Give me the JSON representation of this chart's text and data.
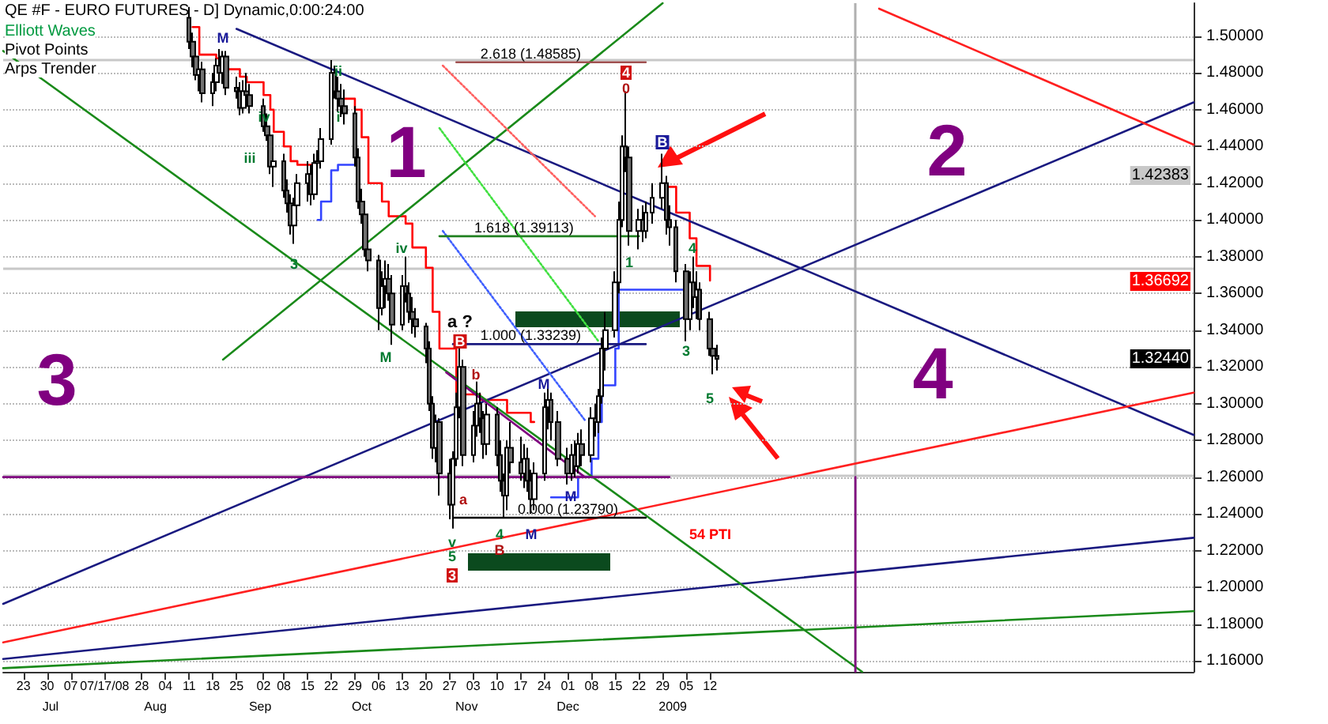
{
  "chart_data": {
    "type": "candlestick",
    "title": "QE #F - EURO FUTURES - D] Dynamic,0:00:24:00",
    "x": [
      "2008-08-11",
      "2008-08-12",
      "2008-08-13",
      "2008-08-14",
      "2008-08-15",
      "2008-08-18",
      "2008-08-19",
      "2008-08-20",
      "2008-08-21",
      "2008-08-22",
      "2008-08-25",
      "2008-08-26",
      "2008-08-27",
      "2008-08-28",
      "2008-08-29",
      "2008-09-02",
      "2008-09-03",
      "2008-09-04",
      "2008-09-05",
      "2008-09-08",
      "2008-09-09",
      "2008-09-10",
      "2008-09-11",
      "2008-09-12",
      "2008-09-15",
      "2008-09-16",
      "2008-09-17",
      "2008-09-18",
      "2008-09-19",
      "2008-09-22",
      "2008-09-23",
      "2008-09-24",
      "2008-09-25",
      "2008-09-26",
      "2008-09-29",
      "2008-09-30",
      "2008-10-01",
      "2008-10-02",
      "2008-10-03",
      "2008-10-06",
      "2008-10-07",
      "2008-10-08",
      "2008-10-09",
      "2008-10-10",
      "2008-10-13",
      "2008-10-14",
      "2008-10-15",
      "2008-10-16",
      "2008-10-17",
      "2008-10-20",
      "2008-10-21",
      "2008-10-22",
      "2008-10-23",
      "2008-10-24",
      "2008-10-27",
      "2008-10-28",
      "2008-10-29",
      "2008-10-30",
      "2008-10-31",
      "2008-11-03",
      "2008-11-04",
      "2008-11-05",
      "2008-11-06",
      "2008-11-07",
      "2008-11-10",
      "2008-11-11",
      "2008-11-12",
      "2008-11-13",
      "2008-11-14",
      "2008-11-17",
      "2008-11-18",
      "2008-11-19",
      "2008-11-20",
      "2008-11-21",
      "2008-11-24",
      "2008-11-25",
      "2008-11-26",
      "2008-11-28",
      "2008-12-01",
      "2008-12-02",
      "2008-12-03",
      "2008-12-04",
      "2008-12-05",
      "2008-12-08",
      "2008-12-09",
      "2008-12-10",
      "2008-12-11",
      "2008-12-12",
      "2008-12-15",
      "2008-12-16",
      "2008-12-17",
      "2008-12-18",
      "2008-12-19",
      "2008-12-22",
      "2008-12-23",
      "2008-12-24",
      "2008-12-26",
      "2008-12-29",
      "2008-12-30",
      "2008-12-31",
      "2009-01-02",
      "2009-01-05",
      "2009-01-06",
      "2009-01-07",
      "2009-01-08",
      "2009-01-09",
      "2009-01-12",
      "2009-01-13",
      "2009-01-14"
    ],
    "ohlc": [
      [
        1.51,
        1.516,
        1.493,
        1.497
      ],
      [
        1.497,
        1.502,
        1.483,
        1.489
      ],
      [
        1.489,
        1.496,
        1.476,
        1.479
      ],
      [
        1.479,
        1.487,
        1.47,
        1.482
      ],
      [
        1.482,
        1.486,
        1.464,
        1.469
      ],
      [
        1.469,
        1.48,
        1.462,
        1.475
      ],
      [
        1.475,
        1.488,
        1.47,
        1.484
      ],
      [
        1.484,
        1.493,
        1.476,
        1.48
      ],
      [
        1.48,
        1.492,
        1.474,
        1.489
      ],
      [
        1.489,
        1.492,
        1.468,
        1.472
      ],
      [
        1.472,
        1.478,
        1.466,
        1.47
      ],
      [
        1.47,
        1.475,
        1.457,
        1.461
      ],
      [
        1.461,
        1.476,
        1.458,
        1.47
      ],
      [
        1.47,
        1.48,
        1.463,
        1.468
      ],
      [
        1.468,
        1.474,
        1.458,
        1.462
      ],
      [
        1.462,
        1.466,
        1.448,
        1.451
      ],
      [
        1.451,
        1.458,
        1.443,
        1.446
      ],
      [
        1.446,
        1.448,
        1.425,
        1.429
      ],
      [
        1.429,
        1.437,
        1.418,
        1.432
      ],
      [
        1.432,
        1.436,
        1.412,
        1.416
      ],
      [
        1.416,
        1.422,
        1.404,
        1.409
      ],
      [
        1.409,
        1.414,
        1.392,
        1.397
      ],
      [
        1.397,
        1.412,
        1.387,
        1.408
      ],
      [
        1.408,
        1.425,
        1.402,
        1.42
      ],
      [
        1.42,
        1.432,
        1.41,
        1.425
      ],
      [
        1.425,
        1.43,
        1.408,
        1.414
      ],
      [
        1.414,
        1.436,
        1.411,
        1.431
      ],
      [
        1.431,
        1.438,
        1.418,
        1.432
      ],
      [
        1.432,
        1.45,
        1.428,
        1.444
      ],
      [
        1.444,
        1.487,
        1.441,
        1.48
      ],
      [
        1.48,
        1.484,
        1.466,
        1.47
      ],
      [
        1.47,
        1.478,
        1.459,
        1.466
      ],
      [
        1.466,
        1.474,
        1.456,
        1.462
      ],
      [
        1.462,
        1.471,
        1.452,
        1.458
      ],
      [
        1.458,
        1.462,
        1.429,
        1.434
      ],
      [
        1.434,
        1.439,
        1.406,
        1.41
      ],
      [
        1.41,
        1.417,
        1.398,
        1.403
      ],
      [
        1.403,
        1.406,
        1.38,
        1.384
      ],
      [
        1.384,
        1.39,
        1.372,
        1.378
      ],
      [
        1.378,
        1.381,
        1.34,
        1.352
      ],
      [
        1.352,
        1.372,
        1.348,
        1.364
      ],
      [
        1.364,
        1.378,
        1.352,
        1.368
      ],
      [
        1.368,
        1.376,
        1.356,
        1.36
      ],
      [
        1.36,
        1.37,
        1.332,
        1.343
      ],
      [
        1.343,
        1.37,
        1.34,
        1.364
      ],
      [
        1.364,
        1.38,
        1.355,
        1.36
      ],
      [
        1.36,
        1.366,
        1.344,
        1.35
      ],
      [
        1.35,
        1.358,
        1.338,
        1.346
      ],
      [
        1.346,
        1.352,
        1.336,
        1.342
      ],
      [
        1.342,
        1.344,
        1.322,
        1.33
      ],
      [
        1.33,
        1.334,
        1.296,
        1.3
      ],
      [
        1.3,
        1.304,
        1.27,
        1.276
      ],
      [
        1.276,
        1.294,
        1.268,
        1.29
      ],
      [
        1.29,
        1.292,
        1.25,
        1.262
      ],
      [
        1.262,
        1.27,
        1.237,
        1.245
      ],
      [
        1.245,
        1.274,
        1.232,
        1.27
      ],
      [
        1.27,
        1.306,
        1.266,
        1.298
      ],
      [
        1.298,
        1.33,
        1.292,
        1.32
      ],
      [
        1.32,
        1.324,
        1.266,
        1.272
      ],
      [
        1.272,
        1.296,
        1.268,
        1.288
      ],
      [
        1.288,
        1.312,
        1.282,
        1.3
      ],
      [
        1.3,
        1.306,
        1.284,
        1.292
      ],
      [
        1.292,
        1.296,
        1.27,
        1.278
      ],
      [
        1.278,
        1.3,
        1.272,
        1.294
      ],
      [
        1.294,
        1.298,
        1.266,
        1.272
      ],
      [
        1.272,
        1.28,
        1.252,
        1.258
      ],
      [
        1.258,
        1.262,
        1.238,
        1.25
      ],
      [
        1.25,
        1.28,
        1.242,
        1.276
      ],
      [
        1.276,
        1.29,
        1.262,
        1.268
      ],
      [
        1.268,
        1.282,
        1.258,
        1.262
      ],
      [
        1.262,
        1.278,
        1.254,
        1.27
      ],
      [
        1.27,
        1.276,
        1.252,
        1.258
      ],
      [
        1.258,
        1.264,
        1.24,
        1.248
      ],
      [
        1.248,
        1.268,
        1.242,
        1.262
      ],
      [
        1.262,
        1.306,
        1.258,
        1.298
      ],
      [
        1.298,
        1.308,
        1.286,
        1.302
      ],
      [
        1.302,
        1.306,
        1.28,
        1.29
      ],
      [
        1.29,
        1.296,
        1.266,
        1.27
      ],
      [
        1.27,
        1.276,
        1.256,
        1.262
      ],
      [
        1.262,
        1.278,
        1.258,
        1.272
      ],
      [
        1.272,
        1.28,
        1.26,
        1.266
      ],
      [
        1.266,
        1.284,
        1.262,
        1.278
      ],
      [
        1.278,
        1.286,
        1.266,
        1.272
      ],
      [
        1.272,
        1.298,
        1.268,
        1.292
      ],
      [
        1.292,
        1.3,
        1.282,
        1.29
      ],
      [
        1.29,
        1.308,
        1.284,
        1.304
      ],
      [
        1.304,
        1.336,
        1.3,
        1.33
      ],
      [
        1.33,
        1.35,
        1.318,
        1.34
      ],
      [
        1.34,
        1.372,
        1.336,
        1.366
      ],
      [
        1.366,
        1.41,
        1.36,
        1.4
      ],
      [
        1.4,
        1.446,
        1.396,
        1.44
      ],
      [
        1.44,
        1.47,
        1.426,
        1.434
      ],
      [
        1.434,
        1.44,
        1.386,
        1.394
      ],
      [
        1.394,
        1.406,
        1.384,
        1.4
      ],
      [
        1.4,
        1.408,
        1.388,
        1.394
      ],
      [
        1.394,
        1.41,
        1.39,
        1.404
      ],
      [
        1.404,
        1.42,
        1.398,
        1.412
      ],
      [
        1.412,
        1.436,
        1.406,
        1.42
      ],
      [
        1.42,
        1.424,
        1.392,
        1.4
      ],
      [
        1.4,
        1.408,
        1.386,
        1.396
      ],
      [
        1.396,
        1.4,
        1.366,
        1.372
      ],
      [
        1.372,
        1.376,
        1.334,
        1.346
      ],
      [
        1.346,
        1.372,
        1.34,
        1.366
      ],
      [
        1.366,
        1.38,
        1.352,
        1.358
      ],
      [
        1.358,
        1.372,
        1.346,
        1.362
      ],
      [
        1.362,
        1.366,
        1.34,
        1.346
      ],
      [
        1.346,
        1.35,
        1.326,
        1.33
      ],
      [
        1.33,
        1.334,
        1.316,
        1.326
      ],
      [
        1.326,
        1.332,
        1.318,
        1.3244
      ]
    ],
    "xlim": [
      "2008-06-17",
      "2009-06-04"
    ],
    "xticks": [
      {
        "value": "2008-06-23",
        "label": "23"
      },
      {
        "value": "2008-06-30",
        "label": "30"
      },
      {
        "value": "2008-07-07",
        "label": "07"
      },
      {
        "value": "2008-07-17",
        "label": "07/17/08"
      },
      {
        "value": "2008-07-28",
        "label": "28"
      },
      {
        "value": "2008-08-04",
        "label": "04"
      },
      {
        "value": "2008-08-11",
        "label": "11"
      },
      {
        "value": "2008-08-18",
        "label": "18"
      },
      {
        "value": "2008-08-25",
        "label": "25"
      },
      {
        "value": "2008-09-02",
        "label": "02"
      },
      {
        "value": "2008-09-08",
        "label": "08"
      },
      {
        "value": "2008-09-15",
        "label": "15"
      },
      {
        "value": "2008-09-22",
        "label": "22"
      },
      {
        "value": "2008-09-29",
        "label": "29"
      },
      {
        "value": "2008-10-06",
        "label": "06"
      },
      {
        "value": "2008-10-13",
        "label": "13"
      },
      {
        "value": "2008-10-20",
        "label": "20"
      },
      {
        "value": "2008-10-27",
        "label": "27"
      },
      {
        "value": "2008-11-03",
        "label": "03"
      },
      {
        "value": "2008-11-10",
        "label": "10"
      },
      {
        "value": "2008-11-17",
        "label": "17"
      },
      {
        "value": "2008-11-24",
        "label": "24"
      },
      {
        "value": "2008-12-01",
        "label": "01"
      },
      {
        "value": "2008-12-08",
        "label": "08"
      },
      {
        "value": "2008-12-15",
        "label": "15"
      },
      {
        "value": "2008-12-22",
        "label": "22"
      },
      {
        "value": "2008-12-29",
        "label": "29"
      },
      {
        "value": "2009-01-05",
        "label": "05"
      },
      {
        "value": "2009-01-12",
        "label": "12"
      }
    ],
    "x2lim": [
      "2008-06-17",
      "2009-06-04"
    ],
    "x2ticks": [
      {
        "value": "2008-07-01",
        "label": "Jul"
      },
      {
        "value": "2008-08-01",
        "label": "Aug"
      },
      {
        "value": "2008-09-01",
        "label": "Sep"
      },
      {
        "value": "2008-10-01",
        "label": "Oct"
      },
      {
        "value": "2008-11-01",
        "label": "Nov"
      },
      {
        "value": "2008-12-01",
        "label": "Dec"
      },
      {
        "value": "2009-01-01",
        "label": "2009"
      }
    ],
    "ylim": [
      1.154,
      1.518
    ],
    "yticks": [
      {
        "value": 1.16,
        "label": "1.16000"
      },
      {
        "value": 1.18,
        "label": "1.18000"
      },
      {
        "value": 1.2,
        "label": "1.20000"
      },
      {
        "value": 1.22,
        "label": "1.22000"
      },
      {
        "value": 1.24,
        "label": "1.24000"
      },
      {
        "value": 1.26,
        "label": "1.26000"
      },
      {
        "value": 1.28,
        "label": "1.28000"
      },
      {
        "value": 1.3,
        "label": "1.30000"
      },
      {
        "value": 1.32,
        "label": "1.32000"
      },
      {
        "value": 1.34,
        "label": "1.34000"
      },
      {
        "value": 1.36,
        "label": "1.36000"
      },
      {
        "value": 1.38,
        "label": "1.38000"
      },
      {
        "value": 1.4,
        "label": "1.40000"
      },
      {
        "value": 1.42,
        "label": "1.42000"
      },
      {
        "value": 1.44,
        "label": "1.44000"
      },
      {
        "value": 1.46,
        "label": "1.46000"
      },
      {
        "value": 1.48,
        "label": "1.48000"
      },
      {
        "value": 1.5,
        "label": "1.50000"
      }
    ],
    "grid": "y",
    "marker": "none",
    "ref_lines": [
      {
        "axis": "y",
        "value": 1.487,
        "label": null,
        "color": "#c8c8c8"
      },
      {
        "axis": "y",
        "value": 1.374,
        "label": null,
        "color": "#c8c8c8"
      },
      {
        "axis": "y",
        "value": 1.261,
        "label": null,
        "color": "#c8c8c8"
      },
      {
        "axis": "x",
        "value": "2009-02-24",
        "label": null,
        "color": "#b0b0b0"
      }
    ],
    "annotations": [
      "Elliott Waves",
      "Pivot Points",
      "Arps Trender",
      "1",
      "2",
      "3",
      "4",
      "1.42383",
      "1.36692",
      "1.32440",
      "54 PTI",
      "M",
      "ii",
      "i",
      "iv",
      "iii",
      "3",
      "iv",
      "M",
      "a ?",
      "B",
      "b",
      "a",
      "v",
      "5",
      "3",
      "4",
      "B",
      "M",
      "M",
      "M",
      "4",
      "0",
      "1",
      "B",
      "4",
      "3",
      "5",
      {
        "text": "2.618 (1.48585)",
        "x": "2008-11-20",
        "y": 1.48585
      },
      {
        "text": "1.618 (1.39113)",
        "x": "2008-11-18",
        "y": 1.39113
      },
      {
        "text": "1.000 (1.33239)",
        "x": "2008-11-20",
        "y": 1.33239
      },
      {
        "text": "0.000 (1.23790)",
        "x": "2008-12-01",
        "y": 1.2379
      }
    ],
    "series": [
      {
        "type": "step",
        "color": "#ff0000",
        "x": [
          "2008-08-12",
          "2008-08-14",
          "2008-08-19",
          "2008-08-22",
          "2008-08-26",
          "2008-08-28",
          "2008-09-02",
          "2008-09-04",
          "2008-09-05",
          "2008-09-08",
          "2008-09-10",
          "2008-09-12",
          "2008-09-16",
          "2008-09-17",
          "2008-09-26",
          "2008-09-29",
          "2008-10-01",
          "2008-10-03",
          "2008-10-07",
          "2008-10-09",
          "2008-10-14",
          "2008-10-16",
          "2008-10-20",
          "2008-10-22",
          "2008-10-24",
          "2008-10-29",
          "2008-11-05",
          "2008-11-13",
          "2008-11-20",
          "2008-11-21",
          "2008-12-30",
          "2009-01-02",
          "2009-01-06",
          "2009-01-08",
          "2009-01-12"
        ],
        "values": [
          1.505,
          1.49,
          1.488,
          1.482,
          1.478,
          1.475,
          1.468,
          1.46,
          1.448,
          1.44,
          1.432,
          1.43,
          1.43,
          null,
          1.466,
          1.46,
          1.445,
          1.42,
          1.41,
          1.402,
          1.398,
          1.385,
          1.374,
          1.35,
          1.33,
          1.305,
          1.302,
          1.295,
          1.29,
          null,
          1.418,
          1.404,
          1.39,
          1.375,
          1.367
        ]
      },
      {
        "type": "step",
        "color": "#3344ff",
        "x": [
          "2008-09-18",
          "2008-09-19",
          "2008-09-22",
          "2008-09-24",
          "2008-09-26",
          "2008-09-29",
          "2008-11-26",
          "2008-12-03",
          "2008-12-04",
          "2008-12-08",
          "2008-12-10",
          "2008-12-11",
          "2008-12-15",
          "2008-12-16",
          "2009-01-05"
        ],
        "values": [
          1.4,
          1.41,
          1.427,
          1.43,
          1.43,
          null,
          1.249,
          1.249,
          1.26,
          1.27,
          1.29,
          1.31,
          1.33,
          1.362,
          1.362
        ]
      },
      {
        "type": "line",
        "color": "#1a1a80",
        "x": [
          "2008-08-25",
          "2009-06-04"
        ],
        "values": [
          1.504,
          1.283
        ]
      },
      {
        "type": "line",
        "color": "#1a1a80",
        "x": [
          "2008-06-17",
          "2009-06-04"
        ],
        "values": [
          1.191,
          1.464
        ]
      },
      {
        "type": "line",
        "color": "#ff2020",
        "x": [
          "2009-03-03",
          "2009-06-04"
        ],
        "values": [
          1.515,
          1.441
        ]
      },
      {
        "type": "line",
        "color": "#ff2020",
        "x": [
          "2008-06-17",
          "2009-06-04"
        ],
        "values": [
          1.17,
          1.306
        ]
      },
      {
        "type": "line",
        "color": "#1a1a80",
        "x": [
          "2008-06-17",
          "2009-06-04"
        ],
        "values": [
          1.161,
          1.227
        ]
      },
      {
        "type": "line",
        "color": "#1a8a1a",
        "x": [
          "2008-06-17",
          "2009-06-04"
        ],
        "values": [
          1.156,
          1.187
        ]
      },
      {
        "type": "line",
        "color": "#1a8a1a",
        "x": [
          "2008-06-17",
          "2009-02-26"
        ],
        "values": [
          1.492,
          1.154
        ]
      },
      {
        "type": "line",
        "color": "#1a8a1a",
        "x": [
          "2008-08-21",
          "2008-12-29"
        ],
        "values": [
          1.324,
          1.518
        ]
      },
      {
        "type": "line",
        "color": "#800080",
        "x": [
          "2008-06-17",
          "2008-12-31"
        ],
        "values": [
          1.26,
          1.26
        ]
      },
      {
        "type": "line",
        "color": "#800080",
        "x": [
          "2009-02-24",
          "2009-02-24"
        ],
        "values": [
          1.26,
          1.154
        ]
      },
      {
        "type": "line",
        "color": "#800080",
        "x": [
          "2008-10-26",
          "2008-12-06"
        ],
        "values": [
          1.317,
          1.26
        ]
      },
      {
        "type": "line",
        "color": "#ff6060",
        "line_style": "dotted",
        "x": [
          "2008-10-25",
          "2008-12-09"
        ],
        "values": [
          1.484,
          1.402
        ]
      },
      {
        "type": "line",
        "color": "#40e040",
        "line_style": "dotted",
        "x": [
          "2008-10-24",
          "2008-12-10"
        ],
        "values": [
          1.45,
          1.334
        ]
      },
      {
        "type": "line",
        "color": "#4060ff",
        "line_style": "dotted",
        "x": [
          "2008-10-25",
          "2008-12-06"
        ],
        "values": [
          1.394,
          1.291
        ]
      },
      {
        "type": "line",
        "color": "#a05050",
        "x": [
          "2008-10-29",
          "2008-12-24"
        ],
        "values": [
          1.48585,
          1.48585
        ]
      },
      {
        "type": "line",
        "color": "#208020",
        "x": [
          "2008-10-24",
          "2008-12-22"
        ],
        "values": [
          1.39113,
          1.39113
        ]
      },
      {
        "type": "line",
        "color": "#1a1a80",
        "x": [
          "2008-10-28",
          "2008-12-24"
        ],
        "values": [
          1.33239,
          1.33239
        ]
      },
      {
        "type": "line",
        "color": "#000000",
        "x": [
          "2008-10-28",
          "2008-12-24"
        ],
        "values": [
          1.2379,
          1.2379
        ]
      }
    ]
  }
}
